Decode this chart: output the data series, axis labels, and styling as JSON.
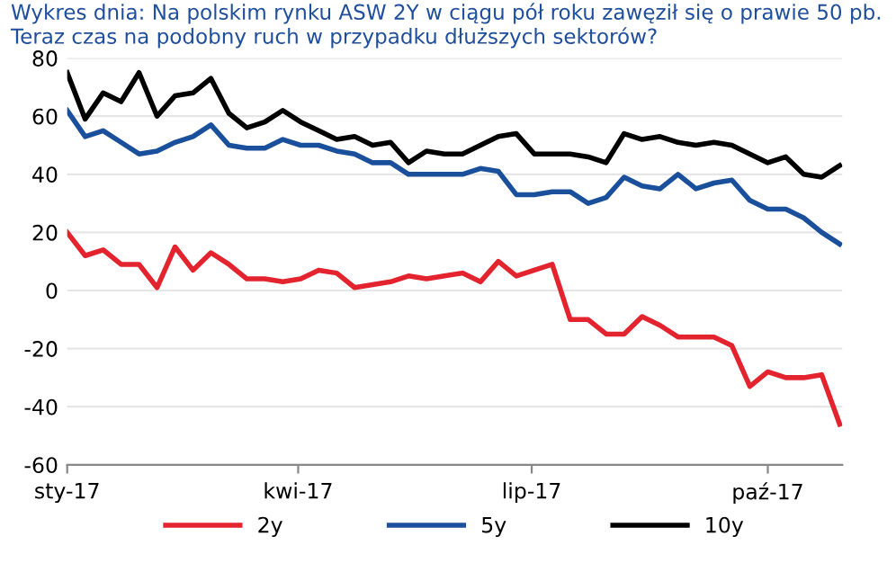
{
  "chart_data": {
    "type": "line",
    "title": "Wykres dnia: Na polskim rynku ASW 2Y w ciągu pół roku zawęził się o prawie 50 pb. Teraz czas na podobny ruch w przypadku dłuższych sektorów?",
    "x": [
      "2017-01-01",
      "2017-01-08",
      "2017-01-15",
      "2017-01-22",
      "2017-01-29",
      "2017-02-05",
      "2017-02-12",
      "2017-02-19",
      "2017-02-26",
      "2017-03-05",
      "2017-03-12",
      "2017-03-19",
      "2017-03-26",
      "2017-04-02",
      "2017-04-09",
      "2017-04-16",
      "2017-04-23",
      "2017-04-30",
      "2017-05-07",
      "2017-05-14",
      "2017-05-21",
      "2017-05-28",
      "2017-06-04",
      "2017-06-11",
      "2017-06-18",
      "2017-06-25",
      "2017-07-02",
      "2017-07-09",
      "2017-07-16",
      "2017-07-23",
      "2017-07-30",
      "2017-08-06",
      "2017-08-13",
      "2017-08-20",
      "2017-08-27",
      "2017-09-03",
      "2017-09-10",
      "2017-09-17",
      "2017-09-24",
      "2017-10-01",
      "2017-10-08",
      "2017-10-15",
      "2017-10-22",
      "2017-10-29"
    ],
    "series": [
      {
        "name": "2y",
        "color": "#e3232e",
        "values": [
          20,
          12,
          14,
          9,
          9,
          1,
          15,
          7,
          13,
          9,
          4,
          4,
          3,
          4,
          7,
          6,
          1,
          2,
          3,
          5,
          4,
          5,
          6,
          3,
          10,
          5,
          7,
          9,
          -10,
          -10,
          -15,
          -15,
          -9,
          -12,
          -16,
          -16,
          -16,
          -19,
          -33,
          -28,
          -30,
          -30,
          -29,
          -46
        ]
      },
      {
        "name": "5y",
        "color": "#1a4f9c",
        "values": [
          62,
          53,
          55,
          51,
          47,
          48,
          51,
          53,
          57,
          50,
          49,
          49,
          52,
          50,
          50,
          48,
          47,
          44,
          44,
          40,
          40,
          40,
          40,
          42,
          41,
          33,
          33,
          34,
          34,
          30,
          32,
          39,
          36,
          35,
          40,
          35,
          37,
          38,
          31,
          28,
          28,
          25,
          20,
          16
        ]
      },
      {
        "name": "10y",
        "color": "#000000",
        "values": [
          75,
          59,
          68,
          65,
          75,
          60,
          67,
          68,
          73,
          61,
          56,
          58,
          62,
          58,
          55,
          52,
          53,
          50,
          51,
          44,
          48,
          47,
          47,
          50,
          53,
          54,
          47,
          47,
          47,
          46,
          44,
          54,
          52,
          53,
          51,
          50,
          51,
          50,
          47,
          44,
          46,
          40,
          39,
          43
        ]
      }
    ],
    "xlim": [
      "2017-01-01",
      "2017-10-30"
    ],
    "xticks": [
      {
        "value": "2017-01-01",
        "label": "sty-17"
      },
      {
        "value": "2017-04-01",
        "label": "kwi-17"
      },
      {
        "value": "2017-07-01",
        "label": "lip-17"
      },
      {
        "value": "2017-10-01",
        "label": "paź-17"
      }
    ],
    "ylim": [
      -60,
      80
    ],
    "yticks": [
      -60,
      -40,
      -20,
      0,
      20,
      40,
      60,
      80
    ],
    "grid": "y",
    "legend": "bottom",
    "line_style": "solid"
  }
}
